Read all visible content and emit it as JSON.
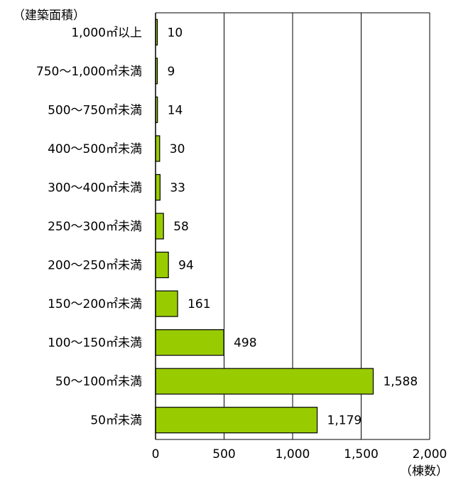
{
  "chart_data": {
    "type": "bar",
    "orientation": "horizontal",
    "ylabel": "（建築面積）",
    "xlabel": "（棟数）",
    "categories": [
      "1,000㎡以上",
      "750～1,000㎡未満",
      "500～750㎡未満",
      "400～500㎡未満",
      "300～400㎡未満",
      "250～300㎡未満",
      "200～250㎡未満",
      "150～200㎡未満",
      "100～150㎡未満",
      "50～100㎡未満",
      "50㎡未満"
    ],
    "values": [
      10,
      9,
      14,
      30,
      33,
      58,
      94,
      161,
      498,
      1588,
      1179
    ],
    "value_labels": [
      "10",
      "9",
      "14",
      "30",
      "33",
      "58",
      "94",
      "161",
      "498",
      "1,588",
      "1,179"
    ],
    "xlim": [
      0,
      2000
    ],
    "xticks": [
      0,
      500,
      1000,
      1500,
      2000
    ],
    "xtick_labels": [
      "0",
      "500",
      "1,000",
      "1,500",
      "2,000"
    ],
    "grid": true,
    "bar_color": "#99cc00"
  }
}
